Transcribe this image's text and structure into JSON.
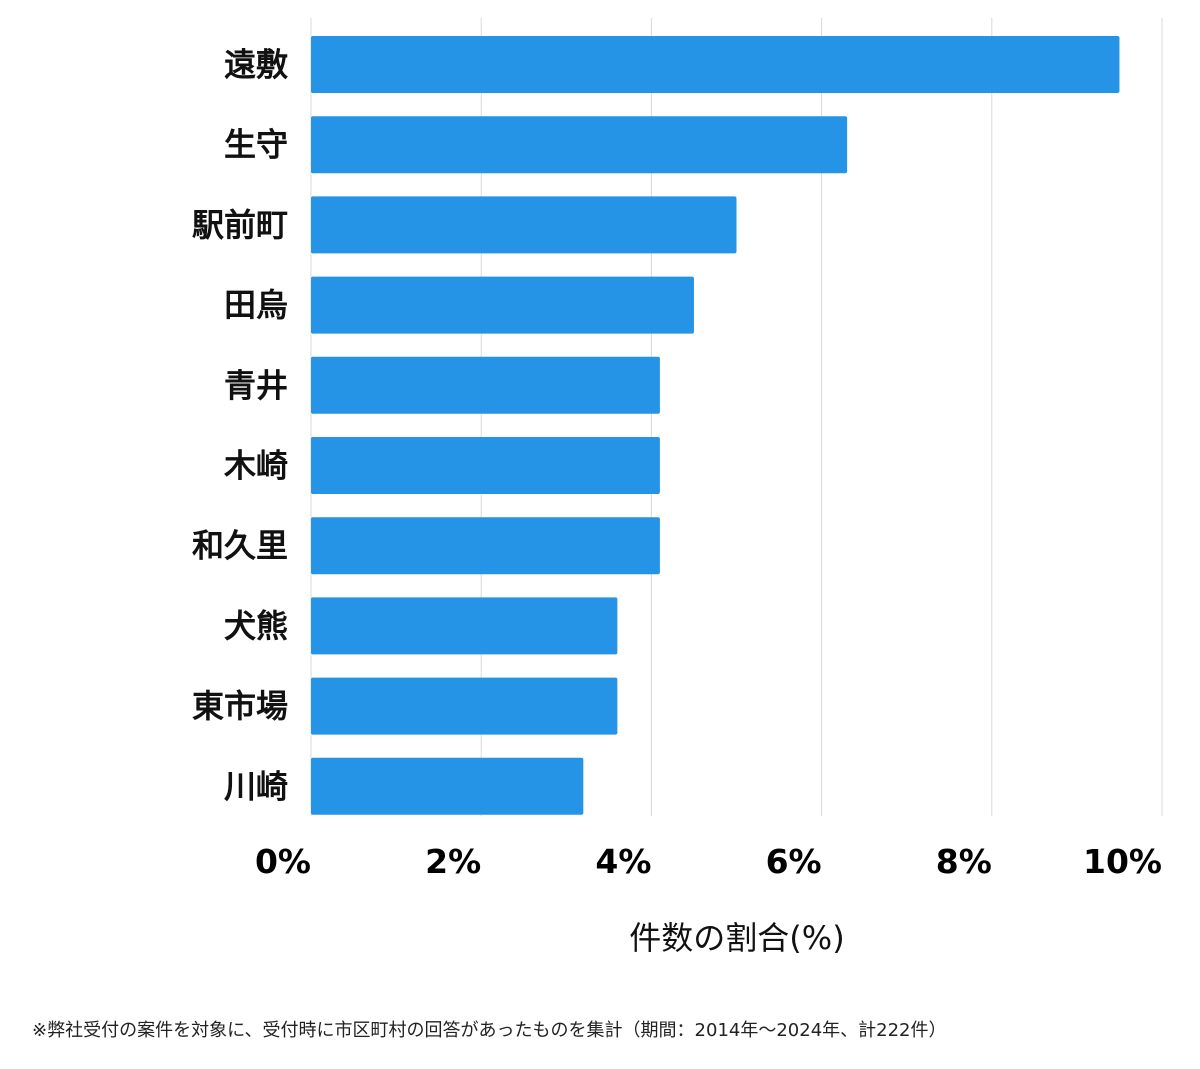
{
  "chart_data": {
    "type": "bar",
    "orientation": "horizontal",
    "categories": [
      "遠敷",
      "生守",
      "駅前町",
      "田烏",
      "青井",
      "木崎",
      "和久里",
      "犬熊",
      "東市場",
      "川崎"
    ],
    "values": [
      9.5,
      6.3,
      5.0,
      4.5,
      4.1,
      4.1,
      4.1,
      3.6,
      3.6,
      3.2
    ],
    "xlabel": "件数の割合(%)",
    "xlim": [
      0,
      10
    ],
    "xticks": [
      0,
      2,
      4,
      6,
      8,
      10
    ],
    "xtick_labels": [
      "0%",
      "2%",
      "4%",
      "6%",
      "8%",
      "10%"
    ],
    "grid": "vertical",
    "bar_color": "#2593e6"
  },
  "footnote": "※弊社受付の案件を対象に、受付時に市区町村の回答があったものを集計（期間：2014年～2024年、計222件）"
}
